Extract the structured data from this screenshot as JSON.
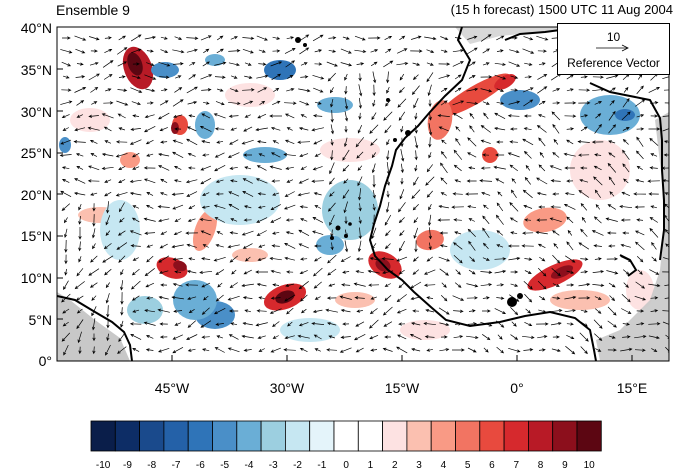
{
  "title_left": "Ensemble 9",
  "title_right": "(15 h forecast) 1500 UTC 11 Aug 2004",
  "lat_labels": [
    "40°N",
    "35°N",
    "30°N",
    "25°N",
    "20°N",
    "15°N",
    "10°N",
    "5°N",
    "0°"
  ],
  "lon_labels": [
    "45°W",
    "30°W",
    "15°W",
    "0°",
    "15°E"
  ],
  "reference_vector": {
    "magnitude": "10",
    "label": "Reference Vector"
  },
  "colorbar": {
    "tick_labels": [
      "-10",
      "-9",
      "-8",
      "-7",
      "-6",
      "-5",
      "-4",
      "-3",
      "-2",
      "-1",
      "0",
      "1",
      "2",
      "3",
      "4",
      "5",
      "6",
      "7",
      "8",
      "9",
      "10"
    ],
    "colors": [
      "#0a1e4a",
      "#0d2d66",
      "#1a4a8c",
      "#2461a8",
      "#2f74b8",
      "#4a8fc8",
      "#6aaed6",
      "#9ccfe0",
      "#c6e7f2",
      "#e4f4fa",
      "#ffffff",
      "#ffffff",
      "#fde2e2",
      "#fbc0b0",
      "#f99a85",
      "#f27462",
      "#e84a3e",
      "#d6292d",
      "#b81a26",
      "#8c0f1c",
      "#5c0612"
    ]
  },
  "colors": {
    "coast": "#000000",
    "land_gray": "#c8c8c8",
    "vector": "#000000"
  }
}
